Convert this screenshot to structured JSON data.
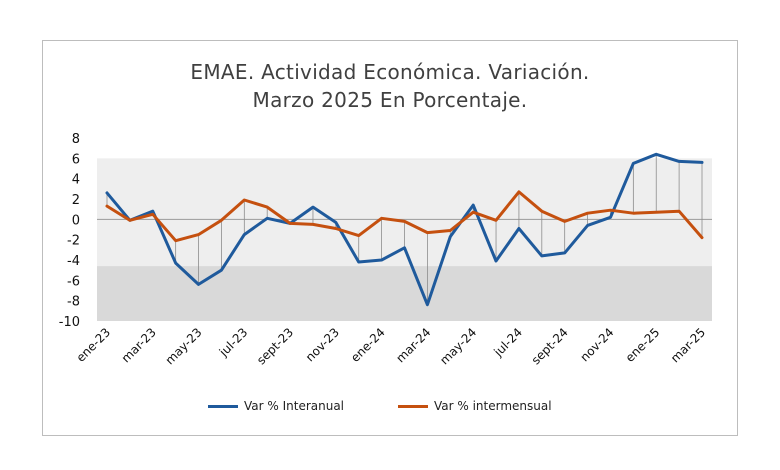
{
  "chart_data": {
    "type": "line",
    "title": [
      "EMAE. Actividad Económica. Variación.",
      "Marzo 2025 En Porcentaje."
    ],
    "xlabel": "",
    "ylabel": "",
    "ylim": [
      -10,
      8
    ],
    "yticks": [
      8,
      6,
      4,
      2,
      0,
      -2,
      -4,
      -6,
      -8,
      -10
    ],
    "x": [
      "ene-23",
      "feb-23",
      "mar-23",
      "abr-23",
      "may-23",
      "jun-23",
      "jul-23",
      "ago-23",
      "sept-23",
      "oct-23",
      "nov-23",
      "dic-23",
      "ene-24",
      "feb-24",
      "mar-24",
      "abr-24",
      "may-24",
      "jun-24",
      "jul-24",
      "ago-24",
      "sept-24",
      "oct-24",
      "nov-24",
      "dic-24",
      "ene-25",
      "feb-25",
      "mar-25"
    ],
    "xtick_labels": [
      "ene-23",
      "mar-23",
      "may-23",
      "jul-23",
      "sept-23",
      "nov-23",
      "ene-24",
      "mar-24",
      "may-24",
      "jul-24",
      "sept-24",
      "nov-24",
      "ene-25",
      "mar-25"
    ],
    "series": [
      {
        "name": "Var % Interanual",
        "color": "#1f5a9c",
        "values": [
          2.6,
          -0.1,
          0.8,
          -4.3,
          -6.4,
          -5.0,
          -1.5,
          0.1,
          -0.4,
          1.2,
          -0.3,
          -4.2,
          -4.0,
          -2.8,
          -8.4,
          -1.7,
          1.4,
          -4.1,
          -0.9,
          -3.6,
          -3.3,
          -0.6,
          0.2,
          5.5,
          6.4,
          5.7,
          5.6
        ]
      },
      {
        "name": "Var % intermensual",
        "color": "#c5500f",
        "values": [
          1.3,
          -0.1,
          0.5,
          -2.1,
          -1.5,
          -0.1,
          1.9,
          1.2,
          -0.4,
          -0.5,
          -0.9,
          -1.6,
          0.1,
          -0.2,
          -1.3,
          -1.1,
          0.7,
          -0.1,
          2.7,
          0.8,
          -0.2,
          0.6,
          0.9,
          0.6,
          0.7,
          0.8,
          -1.8
        ]
      }
    ],
    "grid": false,
    "legend": "bottom",
    "background_bands": [
      {
        "from": 6,
        "to": -4.6,
        "color": "#eeeeee"
      },
      {
        "from": -4.6,
        "to": -10,
        "color": "#d9d9d9"
      }
    ]
  }
}
